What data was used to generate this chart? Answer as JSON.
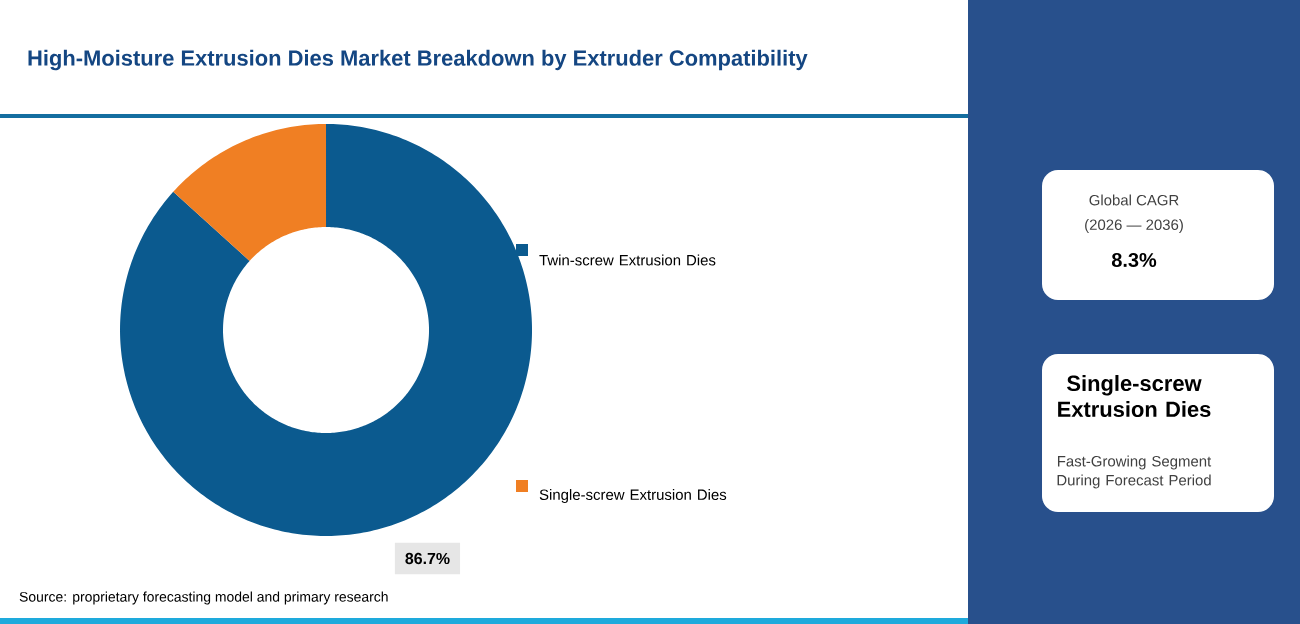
{
  "chart_data": {
    "type": "donut",
    "title": "High-Moisture Extrusion Dies Market Breakdown by Extruder Compatibility",
    "categories": [
      "Twin-screw Extrusion Dies",
      "Single-screw Extrusion Dies"
    ],
    "values": [
      86.7,
      13.3
    ],
    "colors": [
      "#0b5a8f",
      "#f07f23"
    ],
    "value_labels": [
      "86.7%",
      null
    ],
    "legend": "right",
    "annotations": [
      "Source: proprietary forecasting model and primary research",
      "Global CAGR",
      "(2026 — 2036)",
      "8.3%",
      "Single-screw Extrusion Dies",
      "Fast-Growing Segment During Forecast Period"
    ]
  }
}
